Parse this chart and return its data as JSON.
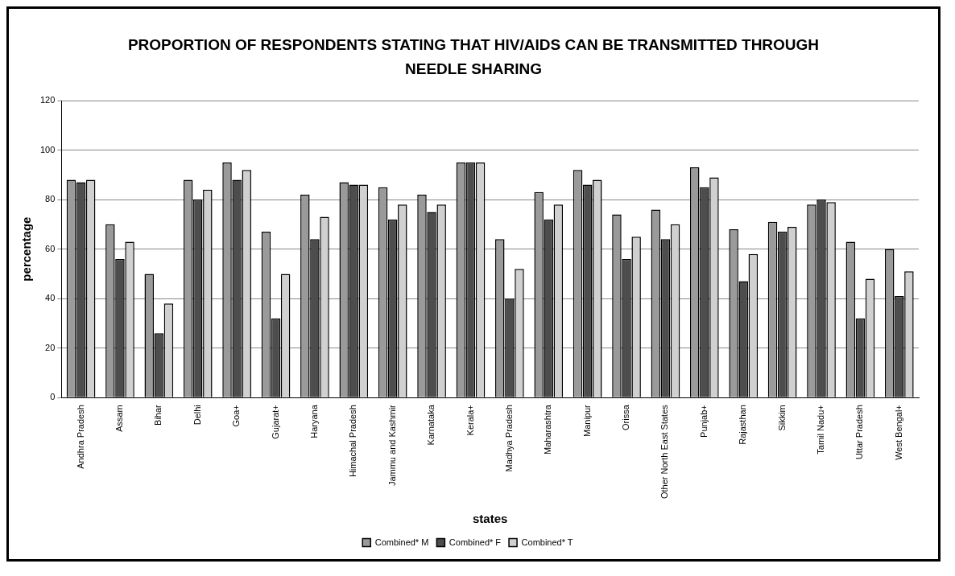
{
  "chart_data": {
    "type": "bar",
    "title": "PROPORTION OF RESPONDENTS STATING THAT HIV/AIDS CAN BE TRANSMITTED THROUGH NEEDLE SHARING",
    "xlabel": "states",
    "ylabel": "percentage",
    "categories": [
      "Andhra Pradesh",
      "Assam",
      "Bihar",
      "Delhi",
      "Goa+",
      "Gujarat+",
      "Haryana",
      "Himachal Pradesh",
      "Jammu and Kashmir",
      "Karnataka",
      "Kerala+",
      "Madhya Pradesh",
      "Maharashtra",
      "Manipur",
      "Orissa",
      "Other North East States",
      "Punjab+",
      "Rajasthan",
      "Sikkim",
      "Tamil Nadu+",
      "Uttar Pradesh",
      "West Bengal+"
    ],
    "series": [
      {
        "name": "Combined* M",
        "color": "#9a9a9a",
        "values": [
          88,
          70,
          50,
          88,
          95,
          67,
          82,
          87,
          85,
          82,
          95,
          64,
          83,
          92,
          74,
          76,
          93,
          68,
          71,
          78,
          63,
          60
        ]
      },
      {
        "name": "Combined* F",
        "color": "#4d4d4d",
        "values": [
          87,
          56,
          26,
          80,
          88,
          32,
          64,
          86,
          72,
          75,
          95,
          40,
          72,
          86,
          56,
          64,
          85,
          47,
          67,
          80,
          32,
          41
        ]
      },
      {
        "name": "Combined* T",
        "color": "#d0d0d0",
        "values": [
          88,
          63,
          38,
          84,
          92,
          50,
          73,
          86,
          78,
          78,
          95,
          52,
          78,
          88,
          65,
          70,
          89,
          58,
          69,
          79,
          48,
          51
        ]
      }
    ],
    "ylim": [
      0,
      120
    ],
    "yticks": [
      0,
      20,
      40,
      60,
      80,
      100,
      120
    ],
    "grid": "y",
    "legend": "bottom"
  }
}
